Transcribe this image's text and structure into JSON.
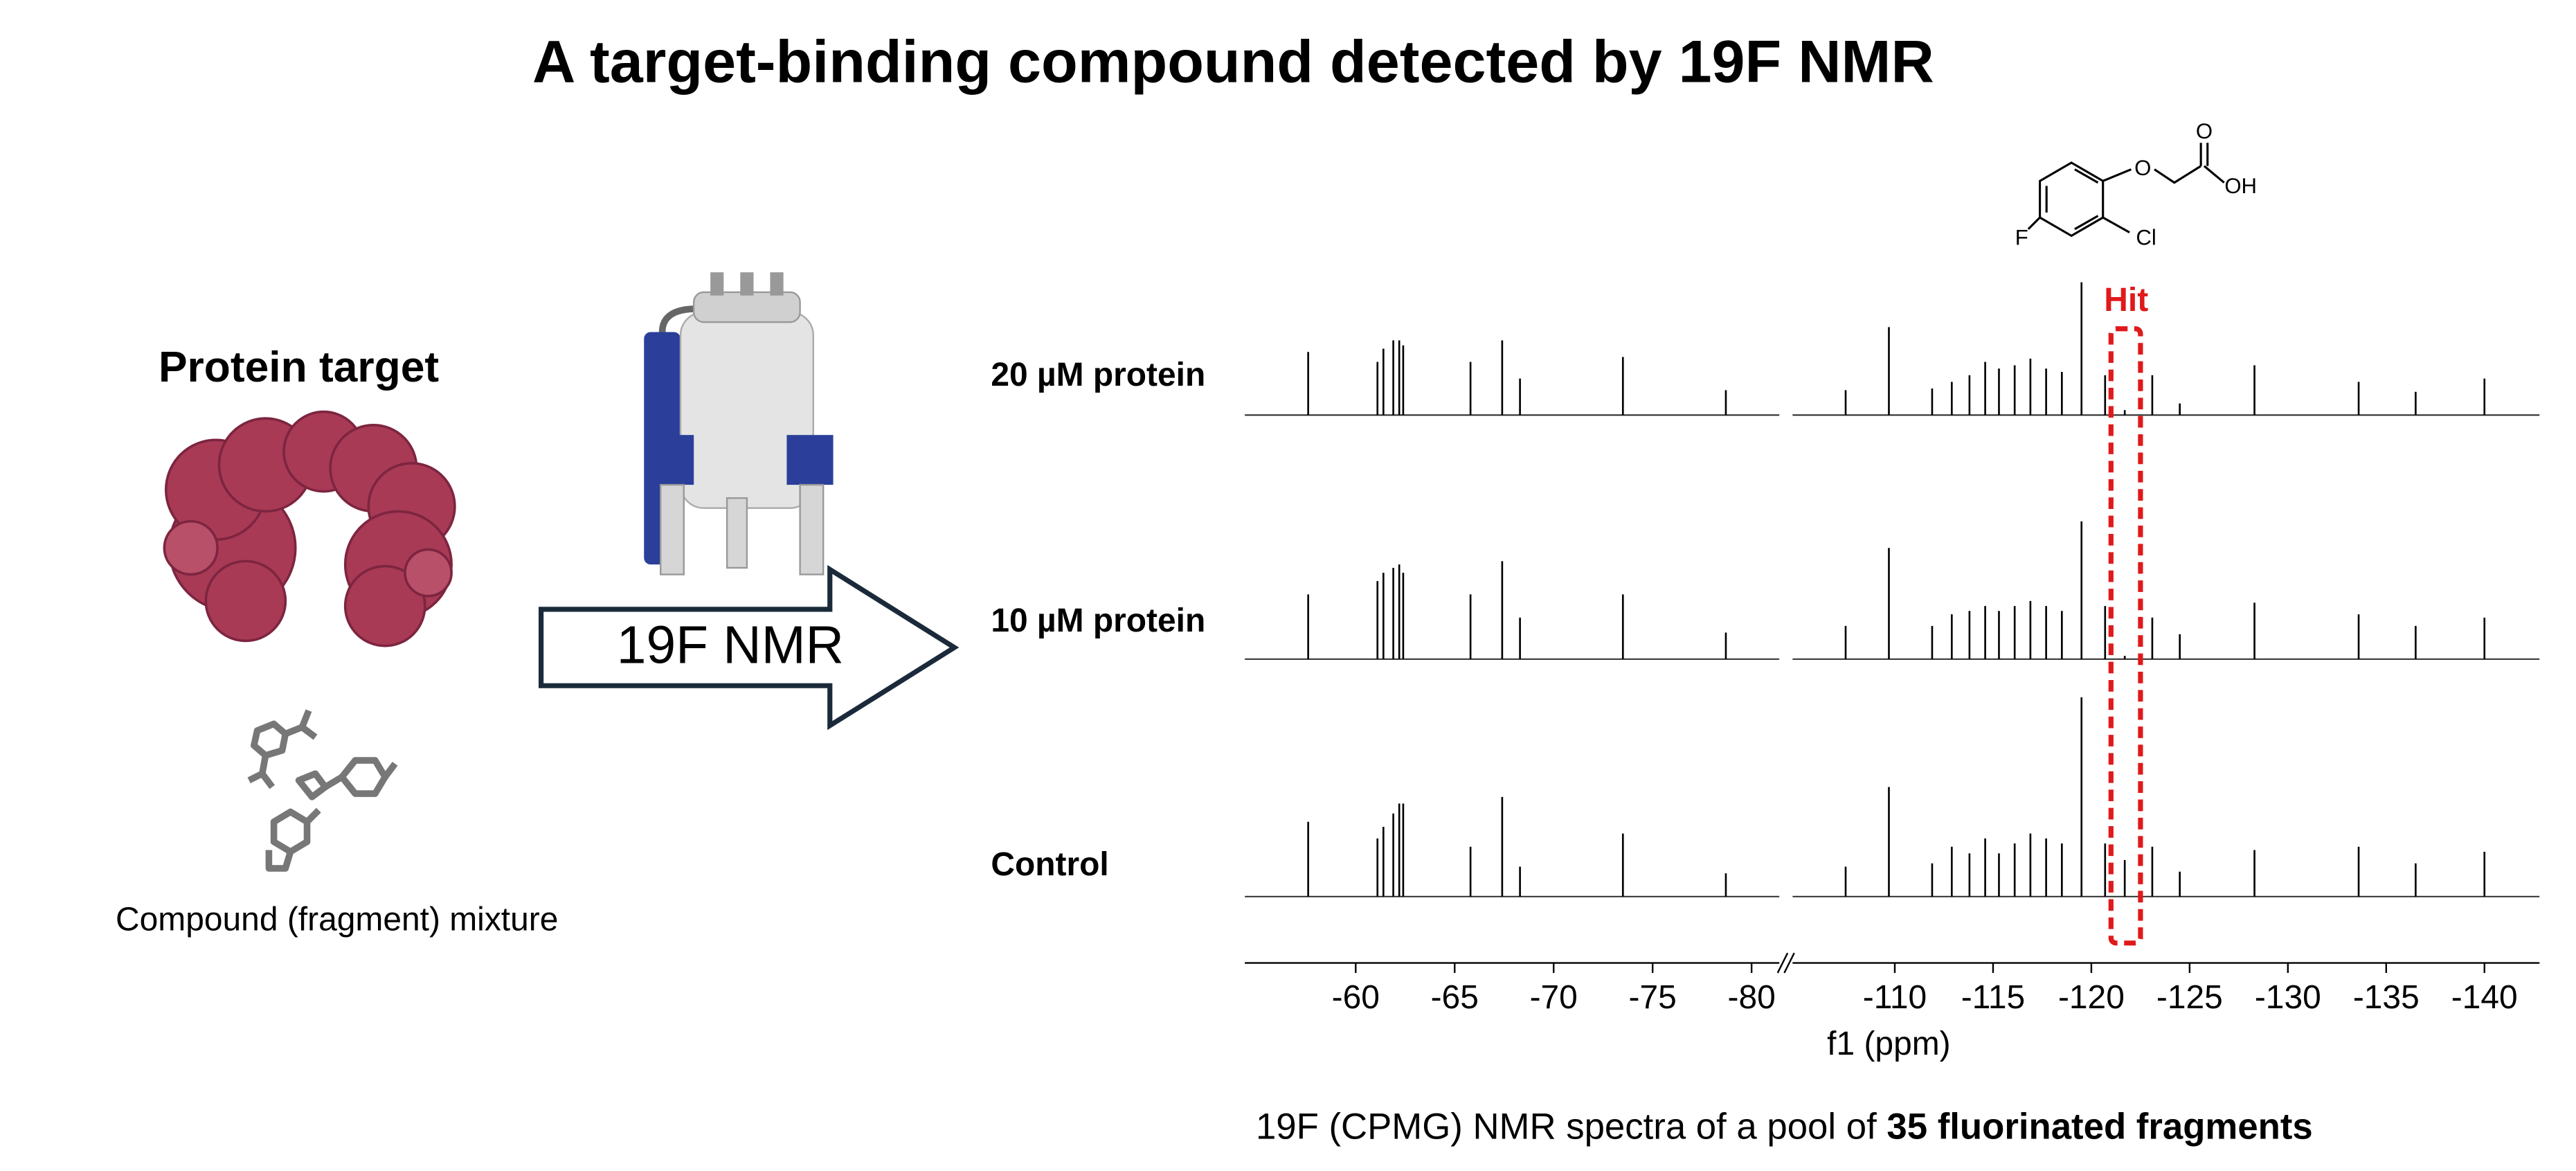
{
  "title": "A target-binding compound detected by 19F NMR",
  "protein_label": "Protein target",
  "mixture_label": "Compound (fragment) mixture",
  "arrow_label": "19F NMR",
  "molecule": {
    "atoms": [
      "O",
      "OH",
      "F",
      "Cl"
    ]
  },
  "spectra": {
    "hit_label": "Hit",
    "hit_range": [
      -121.0,
      -122.5
    ],
    "axis": {
      "label": "f1 (ppm)",
      "segments": [
        {
          "xlim": [
            -54.4,
            -81.4
          ],
          "xticks": [
            -60,
            -65,
            -70,
            -75,
            -80
          ]
        },
        {
          "xlim": [
            -104.8,
            -142.8
          ],
          "xticks": [
            -110,
            -115,
            -120,
            -125,
            -130,
            -135,
            -140
          ]
        }
      ]
    },
    "peaks_ppm": [
      -57.6,
      -61.1,
      -61.4,
      -61.9,
      -62.2,
      -62.4,
      -65.8,
      -67.4,
      -68.3,
      -73.5,
      -78.7,
      -107.5,
      -109.7,
      -111.9,
      -112.9,
      -113.8,
      -114.6,
      -115.3,
      -116.1,
      -116.9,
      -117.7,
      -118.5,
      -119.5,
      -120.7,
      -121.7,
      -123.1,
      -124.5,
      -128.3,
      -133.6,
      -136.5,
      -140.0
    ],
    "traces": [
      {
        "name": "20 µM protein",
        "intensities": [
          38,
          32,
          40,
          45,
          45,
          42,
          32,
          45,
          22,
          35,
          15,
          15,
          53,
          16,
          20,
          24,
          32,
          28,
          30,
          34,
          28,
          26,
          80,
          24,
          3,
          24,
          7,
          30,
          20,
          14,
          22
        ]
      },
      {
        "name": "10 µM protein",
        "intensities": [
          39,
          47,
          52,
          55,
          57,
          52,
          39,
          59,
          25,
          39,
          16,
          20,
          67,
          20,
          27,
          29,
          32,
          29,
          32,
          35,
          32,
          29,
          83,
          32,
          2,
          25,
          15,
          34,
          27,
          20,
          25
        ]
      },
      {
        "name": "Control",
        "intensities": [
          45,
          35,
          42,
          50,
          56,
          56,
          30,
          60,
          18,
          38,
          14,
          18,
          66,
          20,
          30,
          26,
          35,
          26,
          32,
          38,
          35,
          32,
          120,
          32,
          22,
          30,
          15,
          28,
          30,
          20,
          27
        ]
      }
    ]
  },
  "caption": {
    "text": "19F (CPMG) NMR spectra of a pool of ",
    "bold": "35 fluorinated fragments"
  }
}
